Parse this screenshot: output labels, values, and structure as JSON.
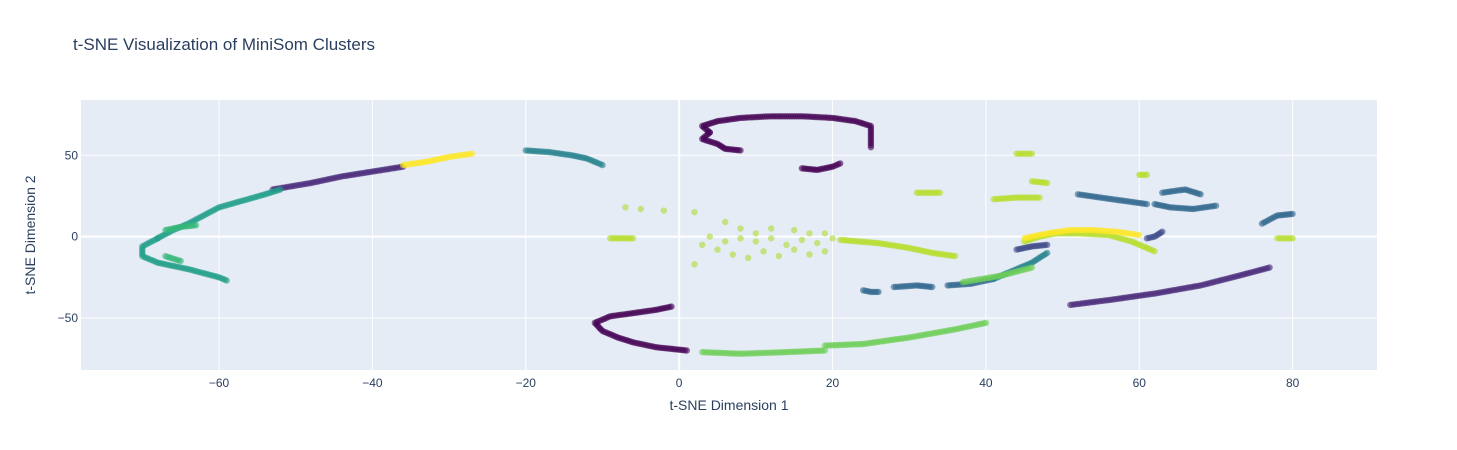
{
  "chart_data": {
    "type": "scatter",
    "title": "t-SNE Visualization of MiniSom Clusters",
    "xlabel": "t-SNE Dimension 1",
    "ylabel": "t-SNE Dimension 2",
    "xlim": [
      -78,
      91
    ],
    "ylim": [
      -82,
      84
    ],
    "xticks": [
      -60,
      -40,
      -20,
      0,
      20,
      40,
      60,
      80
    ],
    "yticks": [
      -50,
      0,
      50
    ],
    "xtick_labels": [
      "−60",
      "−40",
      "−20",
      "0",
      "20",
      "40",
      "60",
      "80"
    ],
    "ytick_labels": [
      "−50",
      "0",
      "50"
    ],
    "grid": true,
    "legend": "none",
    "colorscale": "viridis",
    "plot_bgcolor": "#e5ecf6",
    "marker_opacity": 0.6,
    "series": [
      {
        "color": "#440154",
        "segments": [
          [
            [
              4,
              64
            ],
            [
              3,
              68
            ],
            [
              5,
              71
            ],
            [
              8,
              73
            ],
            [
              12,
              74
            ],
            [
              16,
              74
            ],
            [
              20,
              73
            ],
            [
              23,
              71
            ],
            [
              25,
              68
            ],
            [
              25,
              59
            ],
            [
              25,
              55
            ]
          ],
          [
            [
              4,
              64
            ],
            [
              3,
              60
            ],
            [
              5,
              57
            ],
            [
              6,
              54
            ],
            [
              8,
              53
            ]
          ],
          [
            [
              16,
              42
            ],
            [
              18,
              41
            ],
            [
              20,
              43
            ],
            [
              21,
              45
            ]
          ],
          [
            [
              -1,
              -43
            ],
            [
              -3,
              -45
            ],
            [
              -6,
              -47
            ],
            [
              -9,
              -49
            ],
            [
              -11,
              -53
            ],
            [
              -10,
              -58
            ],
            [
              -8,
              -62
            ],
            [
              -6,
              -65
            ],
            [
              -3,
              -68
            ],
            [
              1,
              -70
            ]
          ]
        ]
      },
      {
        "color": "#482878",
        "segments": [
          [
            [
              -53,
              29
            ],
            [
              -48,
              33
            ],
            [
              -44,
              37
            ],
            [
              -40,
              40
            ],
            [
              -36,
              43
            ]
          ],
          [
            [
              51,
              -42
            ],
            [
              56,
              -39
            ],
            [
              62,
              -35
            ],
            [
              68,
              -30
            ],
            [
              73,
              -24
            ],
            [
              77,
              -19
            ]
          ]
        ]
      },
      {
        "color": "#3e4989",
        "segments": [
          [
            [
              44,
              -8
            ],
            [
              46,
              -6
            ],
            [
              48,
              -5
            ]
          ],
          [
            [
              61,
              -1
            ],
            [
              62,
              0
            ],
            [
              63,
              3
            ]
          ]
        ]
      },
      {
        "color": "#31688e",
        "segments": [
          [
            [
              24,
              -33
            ],
            [
              25,
              -34
            ],
            [
              26,
              -34
            ]
          ],
          [
            [
              28,
              -31
            ],
            [
              31,
              -30
            ],
            [
              33,
              -31
            ]
          ],
          [
            [
              52,
              26
            ],
            [
              55,
              24
            ],
            [
              58,
              22
            ],
            [
              61,
              20
            ]
          ],
          [
            [
              62,
              20
            ],
            [
              64,
              18
            ],
            [
              67,
              17
            ],
            [
              70,
              19
            ]
          ],
          [
            [
              63,
              27
            ],
            [
              66,
              29
            ],
            [
              68,
              26
            ]
          ],
          [
            [
              76,
              8
            ],
            [
              78,
              13
            ],
            [
              80,
              14
            ]
          ],
          [
            [
              35,
              -30
            ],
            [
              38,
              -29
            ],
            [
              41,
              -26
            ]
          ]
        ]
      },
      {
        "color": "#26828e",
        "segments": [
          [
            [
              -20,
              53
            ],
            [
              -17,
              52
            ],
            [
              -14,
              50
            ],
            [
              -12,
              48
            ],
            [
              -10,
              44
            ]
          ],
          [
            [
              41,
              -26
            ],
            [
              44,
              -20
            ],
            [
              46,
              -16
            ],
            [
              48,
              -10
            ]
          ]
        ]
      },
      {
        "color": "#1f9e89",
        "segments": [
          [
            [
              -68,
              -1
            ],
            [
              -70,
              -6
            ],
            [
              -70,
              -12
            ],
            [
              -68,
              -16
            ],
            [
              -64,
              -20
            ],
            [
              -60,
              -25
            ],
            [
              -59,
              -27
            ]
          ],
          [
            [
              -68,
              -1
            ],
            [
              -66,
              4
            ],
            [
              -64,
              8
            ],
            [
              -62,
              13
            ],
            [
              -60,
              18
            ],
            [
              -57,
              22
            ],
            [
              -54,
              26
            ],
            [
              -52,
              29
            ]
          ]
        ]
      },
      {
        "color": "#35b779",
        "segments": [
          [
            [
              -67,
              4
            ],
            [
              -65,
              6
            ],
            [
              -63,
              7
            ]
          ],
          [
            [
              -67,
              -12
            ],
            [
              -65,
              -15
            ]
          ]
        ]
      },
      {
        "color": "#6ece58",
        "segments": [
          [
            [
              3,
              -71
            ],
            [
              8,
              -72
            ],
            [
              14,
              -71
            ],
            [
              19,
              -70
            ]
          ],
          [
            [
              19,
              -67
            ],
            [
              24,
              -66
            ],
            [
              30,
              -62
            ],
            [
              36,
              -57
            ],
            [
              40,
              -53
            ]
          ],
          [
            [
              37,
              -28
            ],
            [
              42,
              -24
            ],
            [
              46,
              -19
            ]
          ]
        ]
      },
      {
        "color": "#b5de2b",
        "segments": [
          [
            [
              21,
              -2
            ],
            [
              26,
              -4
            ],
            [
              30,
              -7
            ],
            [
              33,
              -10
            ],
            [
              36,
              -12
            ]
          ],
          [
            [
              45,
              -3
            ],
            [
              47,
              0
            ],
            [
              49,
              2
            ],
            [
              52,
              2
            ],
            [
              56,
              1
            ],
            [
              59,
              -3
            ],
            [
              62,
              -9
            ]
          ],
          [
            [
              -9,
              -1
            ],
            [
              -6,
              -1
            ]
          ],
          [
            [
              44,
              51
            ],
            [
              46,
              51
            ]
          ],
          [
            [
              46,
              34
            ],
            [
              48,
              33
            ]
          ],
          [
            [
              41,
              23
            ],
            [
              44,
              24
            ],
            [
              47,
              24
            ]
          ],
          [
            [
              31,
              27
            ],
            [
              34,
              27
            ]
          ],
          [
            [
              60,
              38
            ],
            [
              61,
              38
            ]
          ],
          [
            [
              78,
              -1
            ],
            [
              80,
              -1
            ]
          ]
        ]
      },
      {
        "color": "#addc30",
        "points": [
          [
            -7,
            18
          ],
          [
            -5,
            17
          ],
          [
            -2,
            16
          ],
          [
            2,
            15
          ],
          [
            6,
            9
          ],
          [
            8,
            5
          ],
          [
            10,
            2
          ],
          [
            12,
            5
          ],
          [
            15,
            4
          ],
          [
            17,
            2
          ],
          [
            19,
            2
          ],
          [
            4,
            0
          ],
          [
            6,
            -3
          ],
          [
            8,
            -1
          ],
          [
            10,
            -3
          ],
          [
            12,
            -1
          ],
          [
            14,
            -5
          ],
          [
            16,
            -2
          ],
          [
            18,
            -4
          ],
          [
            20,
            -1
          ],
          [
            5,
            -8
          ],
          [
            7,
            -11
          ],
          [
            9,
            -13
          ],
          [
            11,
            -9
          ],
          [
            13,
            -12
          ],
          [
            15,
            -8
          ],
          [
            17,
            -11
          ],
          [
            19,
            -9
          ],
          [
            2,
            -17
          ],
          [
            3,
            -5
          ]
        ]
      },
      {
        "color": "#fde725",
        "segments": [
          [
            [
              -36,
              44
            ],
            [
              -33,
              46
            ],
            [
              -30,
              49
            ],
            [
              -27,
              51
            ]
          ],
          [
            [
              45,
              -1
            ],
            [
              48,
              2
            ],
            [
              51,
              4
            ],
            [
              54,
              4
            ],
            [
              57,
              3
            ],
            [
              60,
              1
            ]
          ]
        ]
      }
    ]
  }
}
